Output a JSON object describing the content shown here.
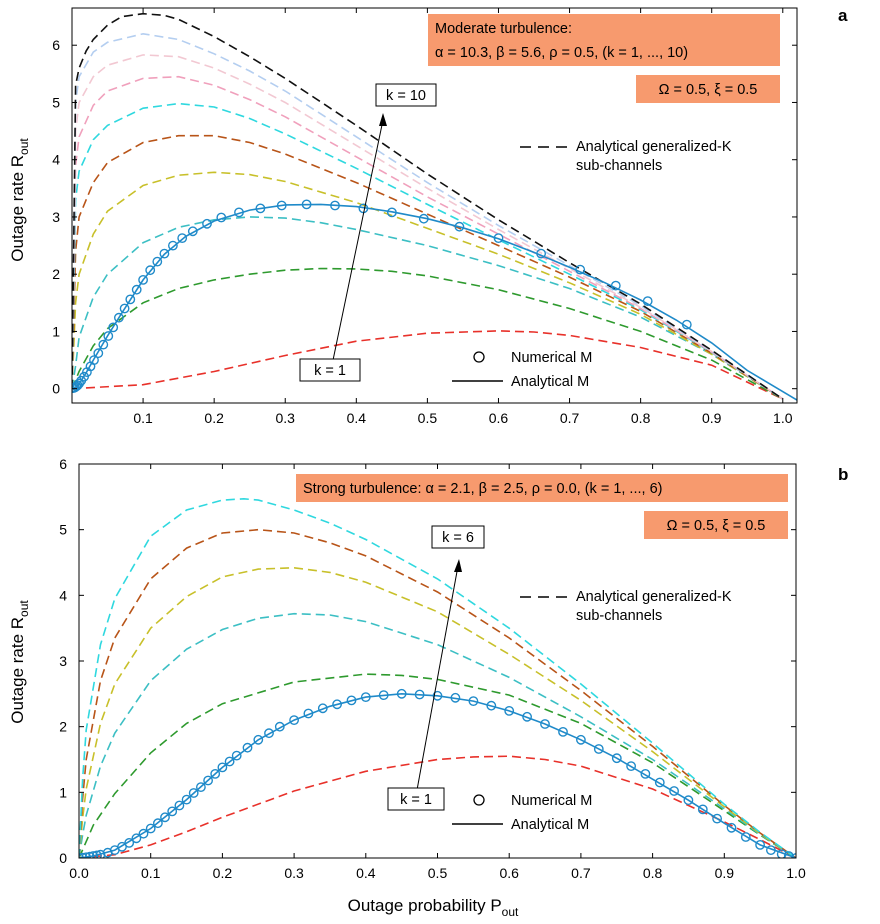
{
  "chart_data": [
    {
      "type": "line",
      "panel_label": "a",
      "xlim": [
        0,
        1.02
      ],
      "ylim": [
        -0.25,
        6.65
      ],
      "x_ticks": [
        0.1,
        0.2,
        0.3,
        0.4,
        0.5,
        0.6,
        0.7,
        0.8,
        0.9,
        1.0
      ],
      "x_tick_labels": [
        "0.1",
        "0.2",
        "0.3",
        "0.4",
        "0.5",
        "0.6",
        "0.7",
        "0.8",
        "0.9",
        "1.0"
      ],
      "y_ticks": [
        0,
        1,
        2,
        3,
        4,
        5,
        6
      ],
      "y_tick_labels": [
        "0",
        "1",
        "2",
        "3",
        "4",
        "5",
        "6"
      ],
      "ylabel": "Outage rate R",
      "ylabel_sub": "out",
      "xlabel": "",
      "xlabel_sub": "",
      "box_lines": [
        "Moderate turbulence:",
        "α = 10.3, β = 5.6, ρ = 0.5, (k = 1, ..., 10)"
      ],
      "box2_text": "Ω = 0.5, ξ = 0.5",
      "box_color": "#f79a6e",
      "k_low_label": "k = 1",
      "k_high_label": "k = 10",
      "legend_dashed_lines": [
        "Analytical generalized-K",
        "sub-channels"
      ],
      "legend_numerical": "Numerical M",
      "legend_analytical": "Analytical M",
      "series": [
        {
          "color": "#e8312a",
          "x": [
            0,
            0.1,
            0.2,
            0.3,
            0.4,
            0.5,
            0.6,
            0.65,
            0.7,
            0.8,
            0.9,
            1.0
          ],
          "y": [
            0,
            0.07,
            0.3,
            0.58,
            0.83,
            0.97,
            1.01,
            0.99,
            0.93,
            0.72,
            0.41,
            -0.18
          ]
        },
        {
          "color": "#2e9a2e",
          "x": [
            0,
            0.01,
            0.03,
            0.05,
            0.1,
            0.15,
            0.2,
            0.25,
            0.3,
            0.35,
            0.4,
            0.45,
            0.5,
            0.6,
            0.7,
            0.8,
            0.9,
            1.0
          ],
          "y": [
            0,
            0.3,
            0.75,
            1.05,
            1.5,
            1.75,
            1.9,
            2.0,
            2.07,
            2.1,
            2.09,
            2.05,
            1.97,
            1.73,
            1.4,
            1.0,
            0.5,
            -0.18
          ]
        },
        {
          "color": "#3cbfc4",
          "x": [
            0,
            0.005,
            0.01,
            0.03,
            0.05,
            0.1,
            0.15,
            0.2,
            0.25,
            0.3,
            0.35,
            0.4,
            0.5,
            0.6,
            0.7,
            0.8,
            0.9,
            1.0
          ],
          "y": [
            0,
            0.4,
            0.9,
            1.6,
            2.0,
            2.55,
            2.82,
            2.95,
            3.0,
            2.98,
            2.9,
            2.78,
            2.5,
            2.15,
            1.75,
            1.25,
            0.6,
            -0.18
          ]
        },
        {
          "color": "#c8c02a",
          "x": [
            0,
            0.005,
            0.01,
            0.03,
            0.05,
            0.1,
            0.15,
            0.2,
            0.25,
            0.3,
            0.4,
            0.5,
            0.6,
            0.7,
            0.8,
            0.9,
            1.0
          ],
          "y": [
            0,
            1.5,
            2.0,
            2.7,
            3.1,
            3.55,
            3.73,
            3.78,
            3.74,
            3.62,
            3.25,
            2.8,
            2.35,
            1.85,
            1.3,
            0.6,
            -0.18
          ]
        },
        {
          "color": "#b85418",
          "x": [
            0,
            0.005,
            0.01,
            0.03,
            0.05,
            0.1,
            0.15,
            0.2,
            0.25,
            0.3,
            0.4,
            0.5,
            0.6,
            0.7,
            0.8,
            0.9,
            1.0
          ],
          "y": [
            0,
            2.4,
            3.0,
            3.6,
            3.95,
            4.3,
            4.42,
            4.42,
            4.3,
            4.1,
            3.6,
            3.05,
            2.5,
            1.95,
            1.35,
            0.62,
            -0.18
          ]
        },
        {
          "color": "#2fd8df",
          "x": [
            0,
            0.005,
            0.01,
            0.03,
            0.05,
            0.1,
            0.15,
            0.2,
            0.25,
            0.3,
            0.4,
            0.5,
            0.6,
            0.7,
            0.8,
            0.9,
            1.0
          ],
          "y": [
            0,
            3.3,
            3.8,
            4.35,
            4.6,
            4.9,
            4.98,
            4.92,
            4.72,
            4.45,
            3.85,
            3.22,
            2.6,
            2.0,
            1.38,
            0.63,
            -0.18
          ]
        },
        {
          "color": "#f0a0bc",
          "x": [
            0,
            0.005,
            0.01,
            0.03,
            0.05,
            0.1,
            0.15,
            0.2,
            0.25,
            0.3,
            0.4,
            0.5,
            0.6,
            0.7,
            0.8,
            0.9,
            1.0
          ],
          "y": [
            0,
            3.9,
            4.4,
            4.95,
            5.2,
            5.42,
            5.45,
            5.3,
            5.05,
            4.75,
            4.05,
            3.35,
            2.7,
            2.05,
            1.4,
            0.64,
            -0.18
          ]
        },
        {
          "color": "#f2c8d2",
          "x": [
            0,
            0.005,
            0.01,
            0.03,
            0.05,
            0.1,
            0.15,
            0.2,
            0.25,
            0.3,
            0.4,
            0.5,
            0.6,
            0.7,
            0.8,
            0.9,
            1.0
          ],
          "y": [
            0,
            4.5,
            5.0,
            5.45,
            5.65,
            5.83,
            5.8,
            5.6,
            5.32,
            5.0,
            4.25,
            3.5,
            2.78,
            2.1,
            1.42,
            0.65,
            -0.18
          ]
        },
        {
          "color": "#b4cef0",
          "x": [
            0,
            0.005,
            0.01,
            0.03,
            0.05,
            0.1,
            0.15,
            0.2,
            0.25,
            0.3,
            0.4,
            0.5,
            0.6,
            0.7,
            0.8,
            0.9,
            1.0
          ],
          "y": [
            0,
            5.0,
            5.45,
            5.88,
            6.05,
            6.2,
            6.1,
            5.85,
            5.55,
            5.2,
            4.4,
            3.6,
            2.85,
            2.15,
            1.45,
            0.66,
            -0.18
          ]
        },
        {
          "color": "#111111",
          "x": [
            0,
            0.005,
            0.01,
            0.02,
            0.03,
            0.05,
            0.07,
            0.1,
            0.13,
            0.15,
            0.2,
            0.25,
            0.3,
            0.4,
            0.5,
            0.6,
            0.7,
            0.8,
            0.9,
            1.0
          ],
          "y": [
            0,
            5.3,
            5.6,
            5.9,
            6.1,
            6.35,
            6.5,
            6.55,
            6.52,
            6.45,
            6.15,
            5.8,
            5.42,
            4.6,
            3.75,
            2.95,
            2.2,
            1.48,
            0.67,
            -0.18
          ]
        }
      ],
      "numerical_x": [
        0.002,
        0.004,
        0.006,
        0.008,
        0.01,
        0.013,
        0.017,
        0.021,
        0.026,
        0.031,
        0.037,
        0.044,
        0.051,
        0.058,
        0.066,
        0.074,
        0.082,
        0.091,
        0.1,
        0.11,
        0.12,
        0.13,
        0.142,
        0.155,
        0.17,
        0.19,
        0.21,
        0.235,
        0.265,
        0.295,
        0.33,
        0.37,
        0.41,
        0.45,
        0.495,
        0.545,
        0.6,
        0.66,
        0.715,
        0.765,
        0.81,
        0.865
      ],
      "numerical_y": [
        0.01,
        0.02,
        0.04,
        0.06,
        0.09,
        0.14,
        0.21,
        0.29,
        0.39,
        0.5,
        0.62,
        0.77,
        0.92,
        1.07,
        1.24,
        1.4,
        1.56,
        1.73,
        1.9,
        2.07,
        2.22,
        2.36,
        2.5,
        2.63,
        2.75,
        2.88,
        2.99,
        3.08,
        3.15,
        3.2,
        3.22,
        3.2,
        3.15,
        3.08,
        2.97,
        2.83,
        2.63,
        2.36,
        2.08,
        1.8,
        1.53,
        1.12
      ],
      "analytical_x": [
        0,
        0.005,
        0.01,
        0.02,
        0.03,
        0.05,
        0.07,
        0.1,
        0.13,
        0.16,
        0.2,
        0.25,
        0.3,
        0.35,
        0.4,
        0.45,
        0.5,
        0.55,
        0.6,
        0.65,
        0.7,
        0.75,
        0.8,
        0.85,
        0.9,
        0.95,
        1.02
      ],
      "analytical_y": [
        0,
        0.02,
        0.08,
        0.28,
        0.5,
        0.92,
        1.32,
        1.9,
        2.35,
        2.66,
        2.93,
        3.12,
        3.21,
        3.22,
        3.18,
        3.09,
        2.97,
        2.81,
        2.62,
        2.38,
        2.12,
        1.85,
        1.55,
        1.2,
        0.8,
        0.32,
        -0.2
      ]
    },
    {
      "type": "line",
      "panel_label": "b",
      "xlim": [
        0,
        1.0
      ],
      "ylim": [
        0,
        6.0
      ],
      "x_ticks": [
        0.0,
        0.1,
        0.2,
        0.3,
        0.4,
        0.5,
        0.6,
        0.7,
        0.8,
        0.9,
        1.0
      ],
      "x_tick_labels": [
        "0.0",
        "0.1",
        "0.2",
        "0.3",
        "0.4",
        "0.5",
        "0.6",
        "0.7",
        "0.8",
        "0.9",
        "1.0"
      ],
      "y_ticks": [
        0,
        1,
        2,
        3,
        4,
        5,
        6
      ],
      "y_tick_labels": [
        "0",
        "1",
        "2",
        "3",
        "4",
        "5",
        "6"
      ],
      "ylabel": "Outage rate R",
      "ylabel_sub": "out",
      "xlabel": "Outage probability P",
      "xlabel_sub": "out",
      "box_lines": [
        "Strong turbulence: α = 2.1, β = 2.5, ρ = 0.0, (k = 1, ..., 6)"
      ],
      "box2_text": "Ω = 0.5, ξ = 0.5",
      "box_color": "#f79a6e",
      "k_low_label": "k = 1",
      "k_high_label": "k = 6",
      "legend_dashed_lines": [
        "Analytical generalized-K",
        "sub-channels"
      ],
      "legend_numerical": "Numerical M",
      "legend_analytical": "Analytical M",
      "series": [
        {
          "color": "#e8312a",
          "x": [
            0,
            0.05,
            0.1,
            0.15,
            0.2,
            0.3,
            0.4,
            0.5,
            0.55,
            0.6,
            0.65,
            0.7,
            0.8,
            0.9,
            0.95,
            1.0
          ],
          "y": [
            0,
            0.05,
            0.2,
            0.4,
            0.62,
            1.02,
            1.32,
            1.5,
            1.54,
            1.55,
            1.5,
            1.4,
            1.05,
            0.55,
            0.28,
            0
          ]
        },
        {
          "color": "#2e9a2e",
          "x": [
            0,
            0.01,
            0.02,
            0.05,
            0.1,
            0.15,
            0.2,
            0.3,
            0.4,
            0.45,
            0.5,
            0.6,
            0.7,
            0.8,
            0.9,
            0.95,
            1.0
          ],
          "y": [
            0,
            0.25,
            0.5,
            0.98,
            1.6,
            2.05,
            2.35,
            2.68,
            2.8,
            2.78,
            2.72,
            2.48,
            2.05,
            1.45,
            0.72,
            0.35,
            0
          ]
        },
        {
          "color": "#3cbfc4",
          "x": [
            0,
            0.005,
            0.01,
            0.03,
            0.05,
            0.1,
            0.15,
            0.2,
            0.25,
            0.3,
            0.35,
            0.4,
            0.5,
            0.6,
            0.7,
            0.8,
            0.9,
            0.95,
            1.0
          ],
          "y": [
            0,
            0.35,
            0.65,
            1.4,
            1.9,
            2.7,
            3.18,
            3.48,
            3.65,
            3.72,
            3.7,
            3.6,
            3.25,
            2.75,
            2.15,
            1.5,
            0.75,
            0.36,
            0
          ]
        },
        {
          "color": "#c8c02a",
          "x": [
            0,
            0.005,
            0.01,
            0.03,
            0.05,
            0.1,
            0.15,
            0.2,
            0.25,
            0.3,
            0.35,
            0.4,
            0.5,
            0.6,
            0.7,
            0.8,
            0.9,
            0.95,
            1.0
          ],
          "y": [
            0,
            0.6,
            1.05,
            2.05,
            2.65,
            3.5,
            3.98,
            4.28,
            4.4,
            4.42,
            4.35,
            4.2,
            3.75,
            3.1,
            2.4,
            1.62,
            0.78,
            0.37,
            0
          ]
        },
        {
          "color": "#b85418",
          "x": [
            0,
            0.005,
            0.01,
            0.03,
            0.05,
            0.1,
            0.15,
            0.2,
            0.25,
            0.3,
            0.35,
            0.4,
            0.5,
            0.6,
            0.7,
            0.8,
            0.9,
            0.95,
            1.0
          ],
          "y": [
            0,
            0.9,
            1.5,
            2.7,
            3.35,
            4.25,
            4.72,
            4.95,
            5.0,
            4.95,
            4.8,
            4.6,
            4.05,
            3.35,
            2.55,
            1.7,
            0.8,
            0.38,
            0
          ]
        },
        {
          "color": "#2fd8df",
          "x": [
            0,
            0.005,
            0.01,
            0.03,
            0.05,
            0.1,
            0.15,
            0.2,
            0.23,
            0.25,
            0.3,
            0.35,
            0.4,
            0.5,
            0.6,
            0.7,
            0.8,
            0.9,
            0.95,
            1.0
          ],
          "y": [
            0,
            1.2,
            1.95,
            3.25,
            3.95,
            4.9,
            5.3,
            5.45,
            5.47,
            5.45,
            5.3,
            5.1,
            4.85,
            4.25,
            3.5,
            2.65,
            1.75,
            0.82,
            0.39,
            0
          ]
        }
      ],
      "numerical_x": [
        0.0,
        0.005,
        0.01,
        0.015,
        0.02,
        0.025,
        0.03,
        0.04,
        0.05,
        0.06,
        0.07,
        0.08,
        0.09,
        0.1,
        0.11,
        0.12,
        0.13,
        0.14,
        0.15,
        0.16,
        0.17,
        0.18,
        0.19,
        0.2,
        0.21,
        0.22,
        0.235,
        0.25,
        0.265,
        0.28,
        0.3,
        0.32,
        0.34,
        0.36,
        0.38,
        0.4,
        0.425,
        0.45,
        0.475,
        0.5,
        0.525,
        0.55,
        0.575,
        0.6,
        0.625,
        0.65,
        0.675,
        0.7,
        0.725,
        0.75,
        0.77,
        0.79,
        0.81,
        0.83,
        0.85,
        0.87,
        0.89,
        0.91,
        0.93,
        0.95,
        0.965,
        0.98,
        0.99,
        1.0
      ],
      "numerical_y": [
        0.0,
        0.005,
        0.01,
        0.02,
        0.03,
        0.04,
        0.05,
        0.08,
        0.12,
        0.17,
        0.23,
        0.3,
        0.37,
        0.45,
        0.53,
        0.62,
        0.71,
        0.8,
        0.89,
        0.99,
        1.08,
        1.18,
        1.28,
        1.38,
        1.47,
        1.56,
        1.68,
        1.8,
        1.9,
        2.0,
        2.1,
        2.2,
        2.28,
        2.34,
        2.4,
        2.45,
        2.48,
        2.5,
        2.49,
        2.47,
        2.44,
        2.39,
        2.32,
        2.24,
        2.15,
        2.04,
        1.92,
        1.8,
        1.66,
        1.52,
        1.4,
        1.28,
        1.15,
        1.02,
        0.88,
        0.74,
        0.6,
        0.46,
        0.32,
        0.2,
        0.12,
        0.06,
        0.03,
        0.0
      ],
      "analytical_x": [
        0,
        0.02,
        0.05,
        0.1,
        0.15,
        0.2,
        0.25,
        0.3,
        0.35,
        0.4,
        0.45,
        0.5,
        0.55,
        0.6,
        0.65,
        0.7,
        0.75,
        0.8,
        0.85,
        0.9,
        0.95,
        1.0
      ],
      "analytical_y": [
        0,
        0.03,
        0.12,
        0.45,
        0.89,
        1.38,
        1.8,
        2.1,
        2.31,
        2.45,
        2.5,
        2.47,
        2.39,
        2.24,
        2.04,
        1.8,
        1.52,
        1.2,
        0.88,
        0.53,
        0.2,
        0
      ]
    }
  ]
}
